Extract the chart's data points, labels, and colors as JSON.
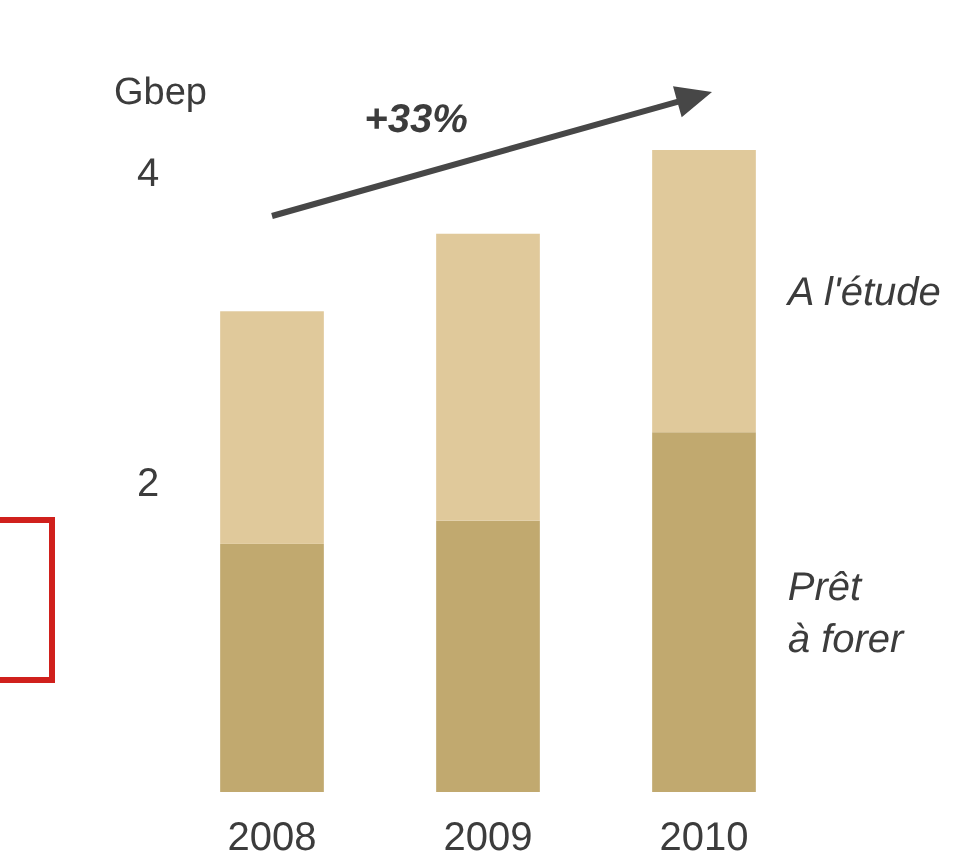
{
  "chart_data": {
    "type": "bar",
    "stacked": true,
    "ylabel": "Gbep",
    "categories": [
      "2008",
      "2009",
      "2010"
    ],
    "series": [
      {
        "name": "Prêt à forer",
        "color": "#c1a96f",
        "values": [
          1.6,
          1.75,
          2.32
        ]
      },
      {
        "name": "A l'étude",
        "color": "#e0c99b",
        "values": [
          1.5,
          1.85,
          1.82
        ]
      }
    ],
    "ylim": [
      0,
      4.14
    ],
    "yticks": [
      2,
      4
    ],
    "grid": false,
    "annotations": [
      "+33%"
    ]
  }
}
